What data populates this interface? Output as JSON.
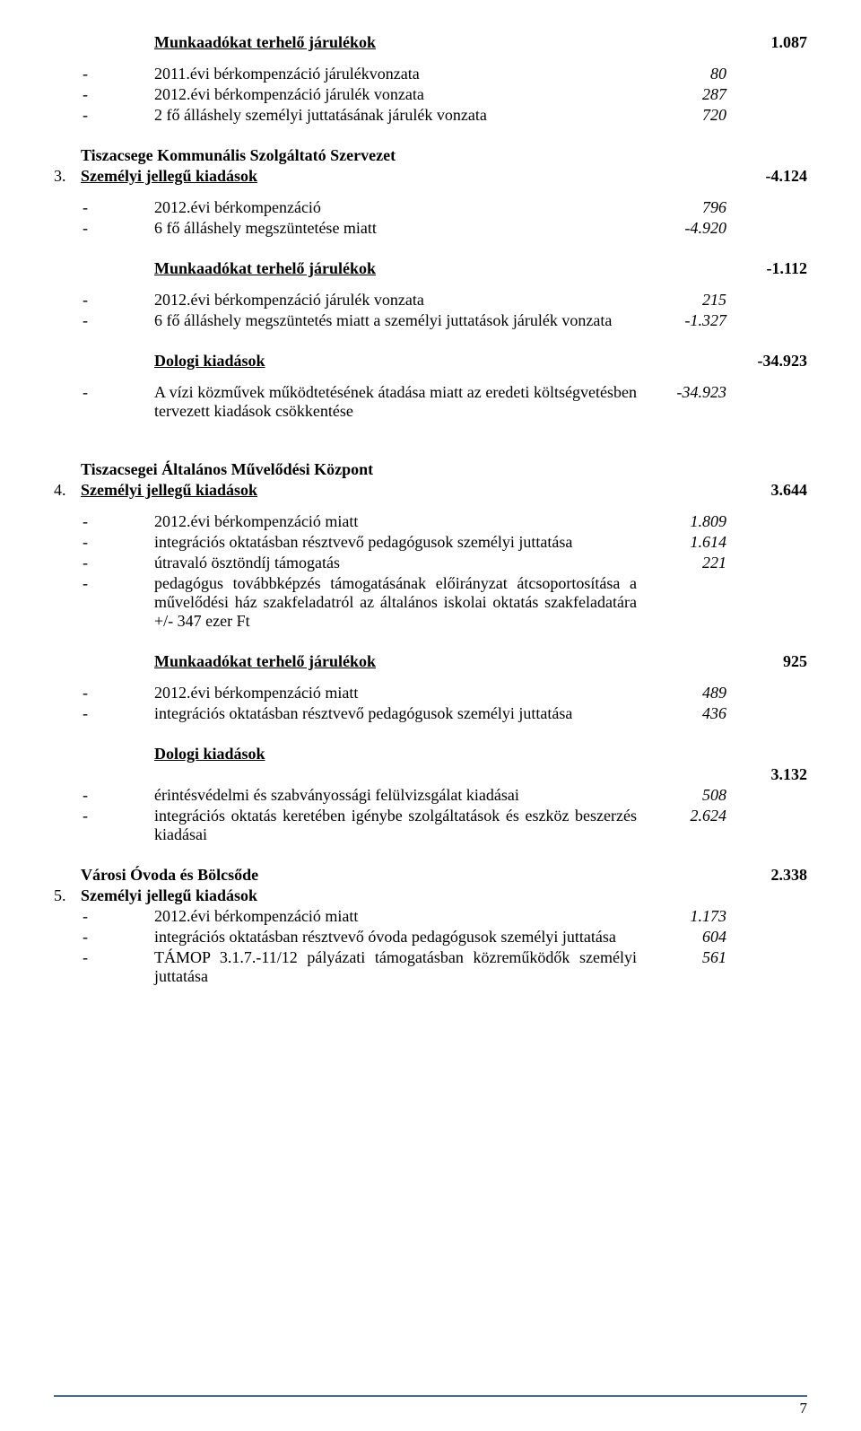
{
  "s1": {
    "title": "Munkaadókat terhelő járulékok",
    "total": "1.087",
    "items": [
      {
        "dash": "-",
        "text": "2011.évi bérkompenzáció járulékvonzata",
        "val": "80"
      },
      {
        "dash": "-",
        "text": "2012.évi bérkompenzáció járulék vonzata",
        "val": "287"
      },
      {
        "dash": "-",
        "text": "2 fő álláshely személyi juttatásának járulék vonzata",
        "val": "720"
      }
    ]
  },
  "s2": {
    "num": "3.",
    "org": "Tiszacsege Kommunális Szolgáltató Szervezet",
    "title": "Személyi jellegű kiadások",
    "total": "-4.124",
    "items": [
      {
        "dash": "-",
        "text": "2012.évi bérkompenzáció",
        "val": "796"
      },
      {
        "dash": "-",
        "text": "6 fő álláshely megszüntetése miatt",
        "val": "-4.920"
      }
    ]
  },
  "s3": {
    "title": "Munkaadókat terhelő járulékok",
    "total": "-1.112",
    "items": [
      {
        "dash": "-",
        "text": "2012.évi bérkompenzáció járulék vonzata",
        "val": "215"
      },
      {
        "dash": "-",
        "text": "6 fő álláshely megszüntetés miatt a személyi juttatások járulék vonzata",
        "val": "-1.327"
      }
    ]
  },
  "s4": {
    "title": "Dologi kiadások",
    "total": "-34.923",
    "items": [
      {
        "dash": "-",
        "text": "A vízi közművek működtetésének átadása miatt az eredeti költségvetésben tervezett kiadások csökkentése",
        "val": "-34.923"
      }
    ]
  },
  "s5": {
    "num": "4.",
    "org": "Tiszacsegei Általános Művelődési Központ",
    "title": "Személyi jellegű kiadások",
    "total": "3.644",
    "items": [
      {
        "dash": "-",
        "text": "2012.évi  bérkompenzáció miatt",
        "val": "1.809"
      },
      {
        "dash": "-",
        "text": "integrációs oktatásban résztvevő pedagógusok személyi juttatása",
        "val": "1.614"
      },
      {
        "dash": "-",
        "text": "útravaló ösztöndíj támogatás",
        "val": "221"
      },
      {
        "dash": "-",
        "text": "pedagógus továbbképzés támogatásának előirányzat átcsoportosítása a művelődési ház szakfeladatról az általános iskolai oktatás szakfeladatára  +/- 347 ezer Ft",
        "val": ""
      }
    ]
  },
  "s6": {
    "title": "Munkaadókat terhelő járulékok",
    "total": "925",
    "items": [
      {
        "dash": "-",
        "text": "2012.évi  bérkompenzáció miatt",
        "val": "489"
      },
      {
        "dash": "-",
        "text": "integrációs oktatásban résztvevő pedagógusok személyi juttatása",
        "val": "436"
      }
    ]
  },
  "s7": {
    "title": "Dologi kiadások",
    "total": "3.132",
    "items": [
      {
        "dash": "-",
        "text": "érintésvédelmi és szabványossági felülvizsgálat kiadásai",
        "val": "508"
      },
      {
        "dash": "-",
        "text": "integrációs oktatás keretében igénybe szolgáltatások és eszköz beszerzés kiadásai",
        "val": "2.624"
      }
    ]
  },
  "s8": {
    "num": "5.",
    "org": "Városi Óvoda és Bölcsőde",
    "org_total": "2.338",
    "title": "Személyi jellegű kiadások",
    "items": [
      {
        "dash": "-",
        "text": "2012.évi  bérkompenzáció miatt",
        "val": "1.173"
      },
      {
        "dash": "-",
        "text": "integrációs oktatásban résztvevő óvoda pedagógusok személyi juttatása",
        "val": "604"
      },
      {
        "dash": "-",
        "text": "TÁMOP 3.1.7.-11/12 pályázati támogatásban közreműködők személyi juttatása",
        "val": "561"
      }
    ]
  },
  "page_number": "7"
}
